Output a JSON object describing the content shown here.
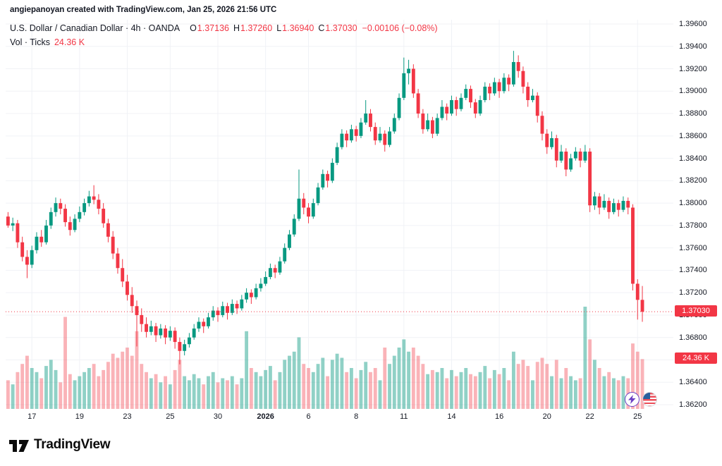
{
  "attribution": "angiepanoyan created with TradingView.com, Jan 25, 2026 21:56 UTC",
  "legend": {
    "title": "U.S. Dollar / Canadian Dollar · 4h · OANDA",
    "ohlc": [
      {
        "k": "O",
        "v": "1.37136"
      },
      {
        "k": "H",
        "v": "1.37260"
      },
      {
        "k": "L",
        "v": "1.36940"
      },
      {
        "k": "C",
        "v": "1.37030"
      }
    ],
    "change": "−0.00106 (−0.08%)",
    "volume_label": "Vol · Ticks",
    "volume_value": "24.36 K"
  },
  "price_axis": {
    "ticks": [
      "1.39600",
      "1.39400",
      "1.39200",
      "1.39000",
      "1.38800",
      "1.38600",
      "1.38400",
      "1.38200",
      "1.38000",
      "1.37800",
      "1.37600",
      "1.37400",
      "1.37200",
      "1.37000",
      "1.36800",
      "1.36600",
      "1.36400",
      "1.36200"
    ],
    "last_price_label": "1.37030",
    "volume_badge_label": "24.36 K"
  },
  "time_axis": {
    "labels": [
      {
        "text": "17",
        "i": 5
      },
      {
        "text": "19",
        "i": 15
      },
      {
        "text": "23",
        "i": 25
      },
      {
        "text": "25",
        "i": 34
      },
      {
        "text": "30",
        "i": 44
      },
      {
        "text": "2026",
        "i": 54,
        "bold": true
      },
      {
        "text": "6",
        "i": 63
      },
      {
        "text": "8",
        "i": 73
      },
      {
        "text": "11",
        "i": 83
      },
      {
        "text": "14",
        "i": 93
      },
      {
        "text": "16",
        "i": 103
      },
      {
        "text": "20",
        "i": 113
      },
      {
        "text": "22",
        "i": 122
      },
      {
        "text": "25",
        "i": 132
      }
    ]
  },
  "footer": {
    "brand": "TradingView"
  },
  "colors": {
    "up": "#089981",
    "down": "#f23645",
    "grid": "#f0f2f6",
    "axis_text": "#131722",
    "badge": "#f23645"
  },
  "chart_data": {
    "type": "candlestick+volume",
    "title": "U.S. Dollar / Canadian Dollar · 4h · OANDA",
    "symbol": "USD/CAD",
    "timeframe": "4h",
    "exchange": "OANDA",
    "last_open": 1.37136,
    "last_high": 1.3726,
    "last_low": 1.3694,
    "last_close": 1.3703,
    "change": -0.00106,
    "change_pct": -0.08,
    "last_volume_k": 24.36,
    "price_range": [
      1.362,
      1.396
    ],
    "slots": 140,
    "legend_on": false,
    "grid_on": true,
    "candles": [
      [
        1.3788,
        1.3792,
        1.3778,
        1.378,
        14
      ],
      [
        1.378,
        1.3787,
        1.3775,
        1.3782,
        12
      ],
      [
        1.3782,
        1.3785,
        1.376,
        1.3765,
        18
      ],
      [
        1.3765,
        1.377,
        1.3748,
        1.3752,
        22
      ],
      [
        1.3752,
        1.3758,
        1.3733,
        1.3745,
        26
      ],
      [
        1.3745,
        1.3762,
        1.3742,
        1.3758,
        20
      ],
      [
        1.3758,
        1.3774,
        1.3755,
        1.377,
        18
      ],
      [
        1.377,
        1.3776,
        1.3761,
        1.3765,
        15
      ],
      [
        1.3765,
        1.3785,
        1.3763,
        1.378,
        21
      ],
      [
        1.378,
        1.3796,
        1.3777,
        1.3792,
        24
      ],
      [
        1.3792,
        1.3805,
        1.3788,
        1.38,
        19
      ],
      [
        1.38,
        1.3804,
        1.379,
        1.3795,
        13
      ],
      [
        1.3795,
        1.3799,
        1.3779,
        1.3783,
        45
      ],
      [
        1.3783,
        1.3788,
        1.3771,
        1.3776,
        17
      ],
      [
        1.3776,
        1.379,
        1.3774,
        1.3786,
        14
      ],
      [
        1.3786,
        1.3797,
        1.3783,
        1.3792,
        16
      ],
      [
        1.3792,
        1.3804,
        1.3789,
        1.38,
        18
      ],
      [
        1.38,
        1.3811,
        1.3797,
        1.3806,
        20
      ],
      [
        1.3806,
        1.3816,
        1.3799,
        1.3803,
        22
      ],
      [
        1.3803,
        1.3808,
        1.379,
        1.3795,
        16
      ],
      [
        1.3795,
        1.38,
        1.3778,
        1.3782,
        19
      ],
      [
        1.3782,
        1.3786,
        1.3765,
        1.377,
        23
      ],
      [
        1.377,
        1.3775,
        1.375,
        1.3755,
        27
      ],
      [
        1.3755,
        1.376,
        1.3737,
        1.3742,
        25
      ],
      [
        1.3742,
        1.375,
        1.3725,
        1.373,
        28
      ],
      [
        1.373,
        1.3736,
        1.3713,
        1.3718,
        30
      ],
      [
        1.3718,
        1.3725,
        1.3702,
        1.3708,
        26
      ],
      [
        1.3708,
        1.3713,
        1.3672,
        1.37,
        38
      ],
      [
        1.37,
        1.3706,
        1.3685,
        1.3692,
        22
      ],
      [
        1.3692,
        1.3698,
        1.368,
        1.3685,
        18
      ],
      [
        1.3685,
        1.3695,
        1.3682,
        1.369,
        15
      ],
      [
        1.369,
        1.3693,
        1.3676,
        1.3682,
        17
      ],
      [
        1.3682,
        1.3692,
        1.3679,
        1.3688,
        13
      ],
      [
        1.3688,
        1.3691,
        1.3674,
        1.368,
        16
      ],
      [
        1.368,
        1.369,
        1.3677,
        1.3686,
        12
      ],
      [
        1.3686,
        1.3689,
        1.367,
        1.3676,
        19
      ],
      [
        1.3676,
        1.368,
        1.3656,
        1.3668,
        24
      ],
      [
        1.3668,
        1.3678,
        1.3664,
        1.3674,
        16
      ],
      [
        1.3674,
        1.3684,
        1.3671,
        1.368,
        14
      ],
      [
        1.368,
        1.3692,
        1.3678,
        1.3688,
        17
      ],
      [
        1.3688,
        1.3698,
        1.3685,
        1.3694,
        15
      ],
      [
        1.3694,
        1.3697,
        1.3684,
        1.369,
        12
      ],
      [
        1.369,
        1.3702,
        1.3688,
        1.3698,
        16
      ],
      [
        1.3698,
        1.3708,
        1.3695,
        1.3704,
        18
      ],
      [
        1.3704,
        1.3707,
        1.3694,
        1.37,
        13
      ],
      [
        1.37,
        1.3712,
        1.3698,
        1.3708,
        15
      ],
      [
        1.3708,
        1.3711,
        1.3696,
        1.3702,
        14
      ],
      [
        1.3702,
        1.3714,
        1.37,
        1.371,
        16
      ],
      [
        1.371,
        1.3713,
        1.3701,
        1.3706,
        12
      ],
      [
        1.3706,
        1.3718,
        1.3704,
        1.3714,
        15
      ],
      [
        1.3714,
        1.3724,
        1.3711,
        1.372,
        38
      ],
      [
        1.372,
        1.3723,
        1.371,
        1.3716,
        20
      ],
      [
        1.3716,
        1.3728,
        1.3714,
        1.3724,
        18
      ],
      [
        1.3724,
        1.3733,
        1.3721,
        1.3728,
        16
      ],
      [
        1.3728,
        1.3739,
        1.3726,
        1.3734,
        19
      ],
      [
        1.3734,
        1.3746,
        1.3732,
        1.3742,
        21
      ],
      [
        1.3742,
        1.3745,
        1.3733,
        1.3738,
        14
      ],
      [
        1.3738,
        1.3752,
        1.3736,
        1.3748,
        18
      ],
      [
        1.3748,
        1.3764,
        1.3746,
        1.376,
        24
      ],
      [
        1.376,
        1.3776,
        1.3758,
        1.3772,
        26
      ],
      [
        1.3772,
        1.379,
        1.377,
        1.3786,
        28
      ],
      [
        1.3786,
        1.383,
        1.3784,
        1.3804,
        35
      ],
      [
        1.3804,
        1.3809,
        1.379,
        1.3796,
        22
      ],
      [
        1.3796,
        1.38,
        1.3782,
        1.3788,
        20
      ],
      [
        1.3788,
        1.3804,
        1.3786,
        1.38,
        18
      ],
      [
        1.38,
        1.3818,
        1.3798,
        1.3814,
        22
      ],
      [
        1.3814,
        1.383,
        1.3812,
        1.3826,
        25
      ],
      [
        1.3826,
        1.3829,
        1.3814,
        1.382,
        16
      ],
      [
        1.382,
        1.384,
        1.3818,
        1.3836,
        24
      ],
      [
        1.3836,
        1.3854,
        1.3834,
        1.385,
        27
      ],
      [
        1.385,
        1.3866,
        1.3848,
        1.3862,
        25
      ],
      [
        1.3862,
        1.3865,
        1.385,
        1.3856,
        18
      ],
      [
        1.3856,
        1.387,
        1.3854,
        1.3866,
        20
      ],
      [
        1.3866,
        1.3869,
        1.3855,
        1.386,
        15
      ],
      [
        1.386,
        1.3876,
        1.3858,
        1.3872,
        19
      ],
      [
        1.3872,
        1.3892,
        1.387,
        1.388,
        23
      ],
      [
        1.388,
        1.3884,
        1.3864,
        1.3868,
        18
      ],
      [
        1.3868,
        1.3872,
        1.3852,
        1.3856,
        20
      ],
      [
        1.3856,
        1.3868,
        1.3854,
        1.3862,
        14
      ],
      [
        1.3862,
        1.3865,
        1.3846,
        1.3852,
        30
      ],
      [
        1.3852,
        1.3868,
        1.385,
        1.3864,
        22
      ],
      [
        1.3864,
        1.388,
        1.3862,
        1.3876,
        26
      ],
      [
        1.3876,
        1.3898,
        1.3874,
        1.3894,
        30
      ],
      [
        1.3894,
        1.393,
        1.3892,
        1.3916,
        34
      ],
      [
        1.3916,
        1.3928,
        1.3906,
        1.392,
        28
      ],
      [
        1.392,
        1.3924,
        1.3894,
        1.3898,
        30
      ],
      [
        1.3898,
        1.3902,
        1.3876,
        1.388,
        26
      ],
      [
        1.388,
        1.3884,
        1.3862,
        1.3866,
        22
      ],
      [
        1.3866,
        1.388,
        1.3864,
        1.3874,
        17
      ],
      [
        1.3874,
        1.3877,
        1.3858,
        1.3862,
        19
      ],
      [
        1.3862,
        1.388,
        1.386,
        1.3876,
        18
      ],
      [
        1.3876,
        1.3892,
        1.3874,
        1.3886,
        20
      ],
      [
        1.3886,
        1.3889,
        1.3874,
        1.388,
        15
      ],
      [
        1.388,
        1.3896,
        1.3878,
        1.3892,
        19
      ],
      [
        1.3892,
        1.3895,
        1.3878,
        1.3884,
        16
      ],
      [
        1.3884,
        1.3898,
        1.3882,
        1.3894,
        18
      ],
      [
        1.3894,
        1.3906,
        1.3892,
        1.3902,
        20
      ],
      [
        1.3902,
        1.3905,
        1.3885,
        1.389,
        17
      ],
      [
        1.389,
        1.3893,
        1.3876,
        1.388,
        16
      ],
      [
        1.388,
        1.3896,
        1.3878,
        1.3892,
        18
      ],
      [
        1.3892,
        1.3908,
        1.389,
        1.3904,
        21
      ],
      [
        1.3904,
        1.3907,
        1.3892,
        1.3898,
        15
      ],
      [
        1.3898,
        1.3912,
        1.3896,
        1.3908,
        19
      ],
      [
        1.3908,
        1.3911,
        1.3894,
        1.39,
        17
      ],
      [
        1.39,
        1.3916,
        1.3898,
        1.3912,
        20
      ],
      [
        1.3912,
        1.3915,
        1.39,
        1.3906,
        14
      ],
      [
        1.3906,
        1.3936,
        1.3904,
        1.3926,
        28
      ],
      [
        1.3926,
        1.3932,
        1.3912,
        1.3918,
        22
      ],
      [
        1.3918,
        1.3922,
        1.3898,
        1.3904,
        24
      ],
      [
        1.3904,
        1.3908,
        1.3886,
        1.3892,
        21
      ],
      [
        1.3892,
        1.3902,
        1.389,
        1.3896,
        14
      ],
      [
        1.3896,
        1.3899,
        1.3872,
        1.3878,
        23
      ],
      [
        1.3878,
        1.3882,
        1.3856,
        1.3862,
        25
      ],
      [
        1.3862,
        1.3866,
        1.3844,
        1.385,
        22
      ],
      [
        1.385,
        1.3864,
        1.3848,
        1.3858,
        16
      ],
      [
        1.3858,
        1.3861,
        1.3832,
        1.3838,
        24
      ],
      [
        1.3838,
        1.3852,
        1.3836,
        1.3846,
        15
      ],
      [
        1.3846,
        1.3849,
        1.3824,
        1.383,
        20
      ],
      [
        1.383,
        1.3844,
        1.3828,
        1.384,
        16
      ],
      [
        1.384,
        1.385,
        1.3838,
        1.3846,
        14
      ],
      [
        1.3846,
        1.3849,
        1.3832,
        1.3838,
        15
      ],
      [
        1.3838,
        1.3852,
        1.3836,
        1.3846,
        50
      ],
      [
        1.3846,
        1.3849,
        1.3792,
        1.3798,
        34
      ],
      [
        1.3798,
        1.381,
        1.3794,
        1.3806,
        24
      ],
      [
        1.3806,
        1.3809,
        1.379,
        1.3796,
        20
      ],
      [
        1.3796,
        1.3808,
        1.3794,
        1.3802,
        16
      ],
      [
        1.3802,
        1.3805,
        1.3786,
        1.3792,
        18
      ],
      [
        1.3792,
        1.3804,
        1.379,
        1.38,
        15
      ],
      [
        1.38,
        1.3803,
        1.3788,
        1.3794,
        14
      ],
      [
        1.3794,
        1.3806,
        1.3792,
        1.3802,
        16
      ],
      [
        1.3802,
        1.3805,
        1.379,
        1.3796,
        15
      ],
      [
        1.3796,
        1.3799,
        1.3722,
        1.3728,
        32
      ],
      [
        1.3728,
        1.3732,
        1.3696,
        1.37136,
        28
      ],
      [
        1.37136,
        1.3726,
        1.3694,
        1.3703,
        24.36
      ]
    ]
  }
}
